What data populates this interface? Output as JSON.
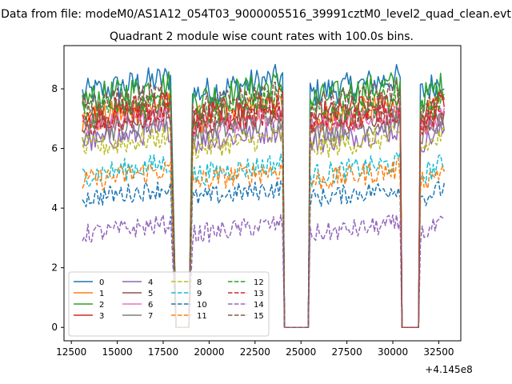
{
  "figure": {
    "suptitle": "Data from file: modeM0/AS1A12_054T03_9000005516_39991cztM0_level2_quad_clean.evt",
    "title": "Quadrant 2 module wise count rates with 100.0s bins.",
    "offset_label": "+4.145e8"
  },
  "chart_data": {
    "type": "line",
    "title": "Quadrant 2 module wise count rates with 100.0s bins.",
    "xlabel": "",
    "ylabel": "",
    "x_offset": 414500000,
    "xlim": [
      12100,
      33700
    ],
    "ylim": [
      -0.45,
      9.45
    ],
    "xticks": [
      12500,
      15000,
      17500,
      20000,
      22500,
      25000,
      27500,
      30000,
      32500
    ],
    "yticks": [
      0,
      2,
      4,
      6,
      8
    ],
    "grid": false,
    "legend": {
      "placement": "lower-left",
      "columns": 4
    },
    "segments_on": [
      [
        13100,
        17900
      ],
      [
        19100,
        24000
      ],
      [
        25500,
        30400
      ],
      [
        31500,
        32800
      ]
    ],
    "segments_off": [
      [
        18200,
        18900
      ],
      [
        24100,
        25400
      ],
      [
        30500,
        31400
      ]
    ],
    "series": [
      {
        "name": "0",
        "mean": 8.1,
        "style": "solid",
        "color": "#1f77b4"
      },
      {
        "name": "1",
        "mean": 7.2,
        "style": "solid",
        "color": "#ff7f0e"
      },
      {
        "name": "2",
        "mean": 7.9,
        "style": "solid",
        "color": "#2ca02c"
      },
      {
        "name": "3",
        "mean": 7.3,
        "style": "solid",
        "color": "#d62728"
      },
      {
        "name": "4",
        "mean": 6.4,
        "style": "solid",
        "color": "#9467bd"
      },
      {
        "name": "5",
        "mean": 7.0,
        "style": "solid",
        "color": "#8c564b"
      },
      {
        "name": "6",
        "mean": 6.9,
        "style": "solid",
        "color": "#e377c2"
      },
      {
        "name": "7",
        "mean": 6.7,
        "style": "solid",
        "color": "#7f7f7f"
      },
      {
        "name": "8",
        "mean": 6.2,
        "style": "dashed",
        "color": "#bcbd22"
      },
      {
        "name": "9",
        "mean": 5.3,
        "style": "dashed",
        "color": "#17becf"
      },
      {
        "name": "10",
        "mean": 4.5,
        "style": "dashed",
        "color": "#1f77b4"
      },
      {
        "name": "11",
        "mean": 5.1,
        "style": "dashed",
        "color": "#ff7f0e"
      },
      {
        "name": "12",
        "mean": 7.4,
        "style": "dashed",
        "color": "#2ca02c"
      },
      {
        "name": "13",
        "mean": 7.0,
        "style": "dashed",
        "color": "#d62728"
      },
      {
        "name": "14",
        "mean": 3.3,
        "style": "dashed",
        "color": "#9467bd"
      },
      {
        "name": "15",
        "mean": 7.6,
        "style": "dashed",
        "color": "#8c564b"
      }
    ]
  }
}
